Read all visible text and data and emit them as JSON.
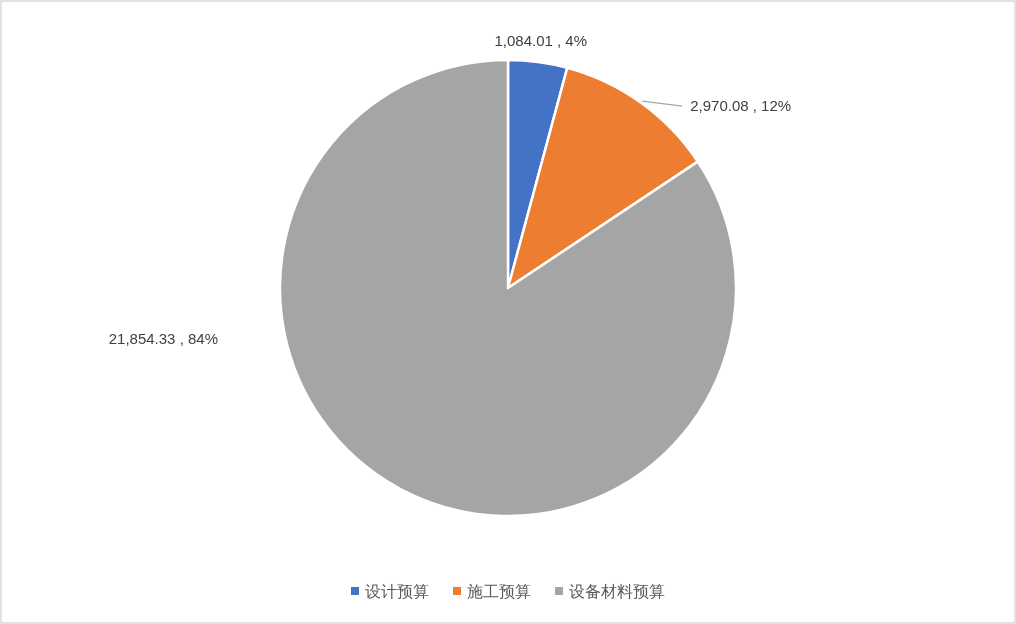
{
  "chart_data": {
    "type": "pie",
    "categories": [
      "设计预算",
      "施工预算",
      "设备材料预算"
    ],
    "values": [
      1084.01,
      2970.08,
      21854.33
    ],
    "colors": [
      "#4472c4",
      "#ed7d31",
      "#a5a5a5"
    ],
    "value_labels": [
      "1,084.01 , 4%",
      "2,970.08 , 12%",
      "21,854.33 , 84%"
    ],
    "legend": "bottom"
  }
}
